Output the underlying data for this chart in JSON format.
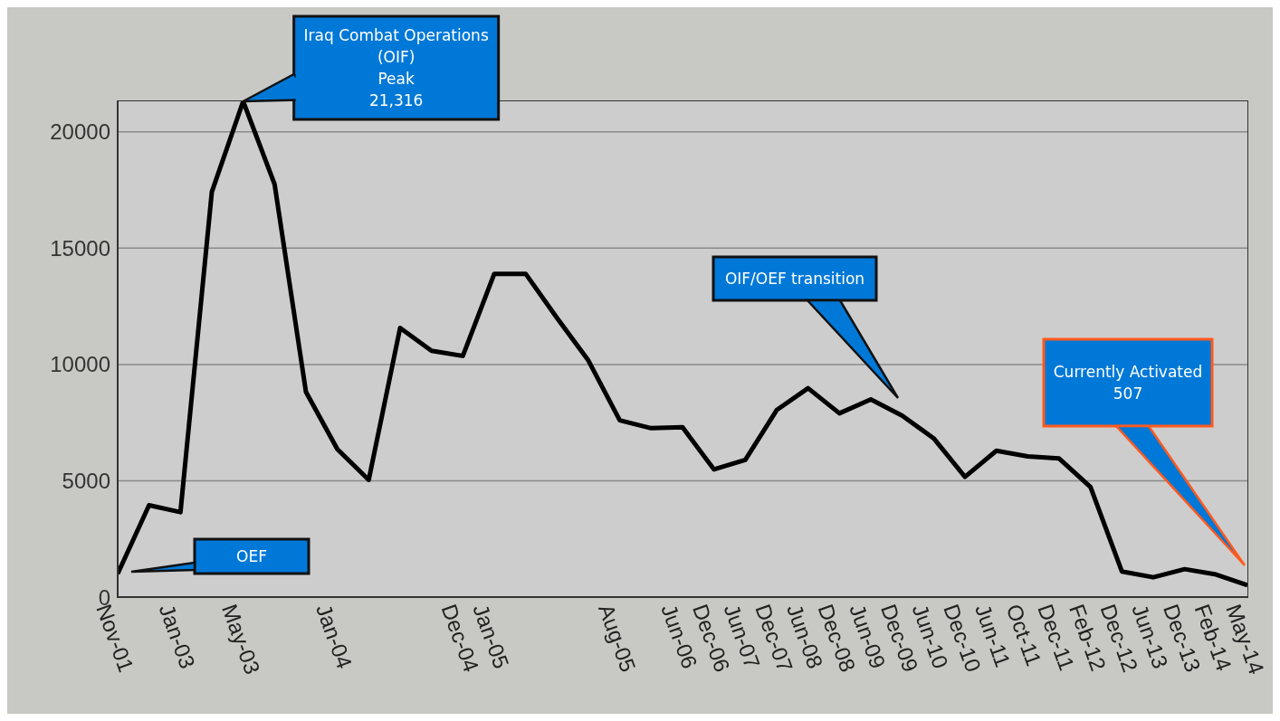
{
  "chart_data": {
    "type": "line",
    "categories": [
      "Nov-01",
      null,
      "Jan-03",
      null,
      "May-03",
      null,
      null,
      "Jan-04",
      null,
      null,
      null,
      "Dec-04",
      "Jan-05",
      null,
      null,
      null,
      "Aug-05",
      null,
      "Jun-06",
      "Dec-06",
      "Jun-07",
      "Dec-07",
      "Jun-08",
      "Dec-08",
      "Jun-09",
      "Dec-09",
      "Jun-10",
      "Dec-10",
      "Jun-11",
      "Oct-11",
      "Dec-11",
      "Feb-12",
      "Dec-12",
      "Jun-13",
      "Dec-13",
      "Feb-14",
      "May-14"
    ],
    "series": [
      {
        "color": "#000000",
        "values": [
          1000,
          3950,
          3650,
          17420,
          21316,
          17750,
          8820,
          6360,
          5040,
          11570,
          10590,
          10370,
          13900,
          13900,
          12000,
          10170,
          7600,
          7260,
          7300,
          5490,
          5900,
          8040,
          8980,
          7900,
          8500,
          7800,
          6830,
          5170,
          6290,
          6050,
          5960,
          4730,
          1100,
          850,
          1200,
          970,
          507
        ]
      }
    ],
    "ylim": [
      0,
      21316
    ],
    "yticks": [
      0,
      5000,
      10000,
      15000,
      20000
    ],
    "grid": "y",
    "marker": "none",
    "line_style": "solid",
    "annotations": [
      {
        "text": "Iraq Combat Operations\n(OIF)\nPeak\n21,316",
        "x": "May-03",
        "y": 21316
      },
      "OEF",
      "OIF/OEF transition",
      "Currently Activated\n507"
    ]
  }
}
